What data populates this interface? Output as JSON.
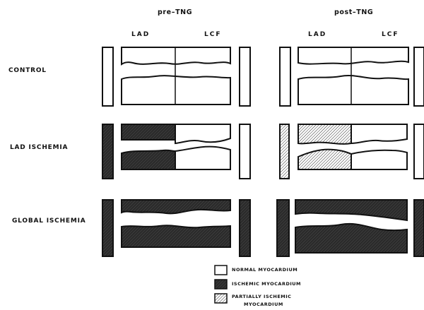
{
  "columns": {
    "pre": "pre–TNG",
    "post": "post–TNG"
  },
  "coronary": {
    "lad": "LAD",
    "lcf": "LCF"
  },
  "rows": [
    {
      "label": "CONTROL"
    },
    {
      "label": "LAD ISCHEMIA"
    },
    {
      "label": "GLOBAL ISCHEMIA"
    }
  ],
  "legend": [
    {
      "label": "NORMAL MYOCARDIUM",
      "fill": "normal"
    },
    {
      "label": "ISCHEMIC MYOCARDIUM",
      "fill": "ischemic"
    },
    {
      "label": "PARTIALLY ISCHEMIC",
      "label2": "MYOCARDIUM",
      "fill": "partial"
    }
  ],
  "colors": {
    "ink": "#111111",
    "ischemic": "#2a2a2a",
    "normal": "#ffffff"
  }
}
